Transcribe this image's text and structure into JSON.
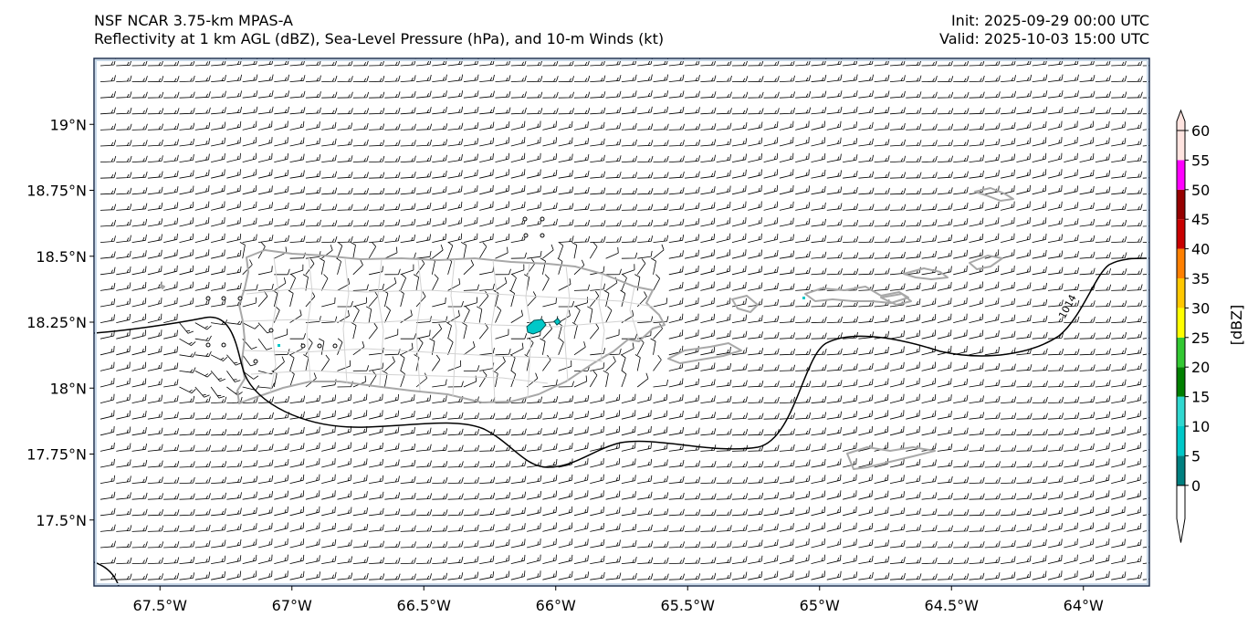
{
  "title": {
    "line1_left": "NSF NCAR 3.75-km MPAS-A",
    "line2_left": "Reflectivity at 1 km AGL (dBZ), Sea-Level Pressure (hPa), and 10-m Winds (kt)",
    "line1_right": "Init: 2025-09-29 00:00 UTC",
    "line2_right": "Valid: 2025-10-03 15:00 UTC"
  },
  "map": {
    "lon_range": [
      -67.75,
      -63.75
    ],
    "lat_range": [
      17.25,
      19.25
    ],
    "lon_ticks": [
      {
        "value": -67.5,
        "label": "67.5°W"
      },
      {
        "value": -67.0,
        "label": "67°W"
      },
      {
        "value": -66.5,
        "label": "66.5°W"
      },
      {
        "value": -66.0,
        "label": "66°W"
      },
      {
        "value": -65.5,
        "label": "65.5°W"
      },
      {
        "value": -65.0,
        "label": "65°W"
      },
      {
        "value": -64.5,
        "label": "64.5°W"
      },
      {
        "value": -64.0,
        "label": "64°W"
      }
    ],
    "lat_ticks": [
      {
        "value": 19.0,
        "label": "19°N"
      },
      {
        "value": 18.75,
        "label": "18.75°N"
      },
      {
        "value": 18.5,
        "label": "18.5°N"
      },
      {
        "value": 18.25,
        "label": "18.25°N"
      },
      {
        "value": 18.0,
        "label": "18°N"
      },
      {
        "value": 17.75,
        "label": "17.75°N"
      },
      {
        "value": 17.5,
        "label": "17.5°N"
      }
    ],
    "isobar_label": "1014",
    "colors": {
      "coast": "#a8a8a8",
      "muni": "#d2d2d2",
      "isobar": "#000000",
      "barb": "#000000",
      "echo": "#00c8c8"
    }
  },
  "colorbar": {
    "label": "[dBZ]",
    "ticks": [
      "0",
      "5",
      "10",
      "15",
      "20",
      "25",
      "30",
      "35",
      "40",
      "45",
      "50",
      "55",
      "60"
    ],
    "colors": [
      "#ffffff",
      "#008080",
      "#00c8c8",
      "#30d8d0",
      "#008000",
      "#32c832",
      "#ffff00",
      "#ffc800",
      "#ff8000",
      "#c80000",
      "#960000",
      "#ff00ff",
      "#ffe4e0"
    ]
  }
}
